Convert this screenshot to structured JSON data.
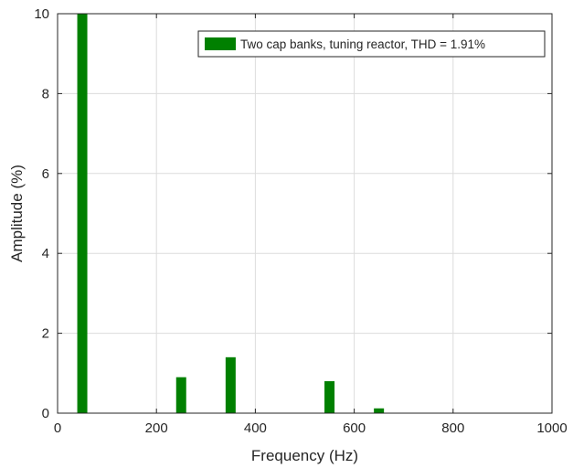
{
  "chart_data": {
    "type": "bar",
    "xlabel": "Frequency (Hz)",
    "ylabel": "Amplitude (%)",
    "xlim": [
      0,
      1000
    ],
    "ylim": [
      0,
      10
    ],
    "xticks": [
      "0",
      "200",
      "400",
      "600",
      "800",
      "1000"
    ],
    "yticks": [
      "0",
      "2",
      "4",
      "6",
      "8",
      "10"
    ],
    "grid": true,
    "legend_position": "top-right",
    "series": [
      {
        "name": "Two cap banks, tuning reactor, THD = 1.91%",
        "color": "#008000",
        "x": [
          50,
          250,
          350,
          550,
          650
        ],
        "values": [
          10,
          0.9,
          1.4,
          0.8,
          0.12
        ]
      }
    ]
  }
}
